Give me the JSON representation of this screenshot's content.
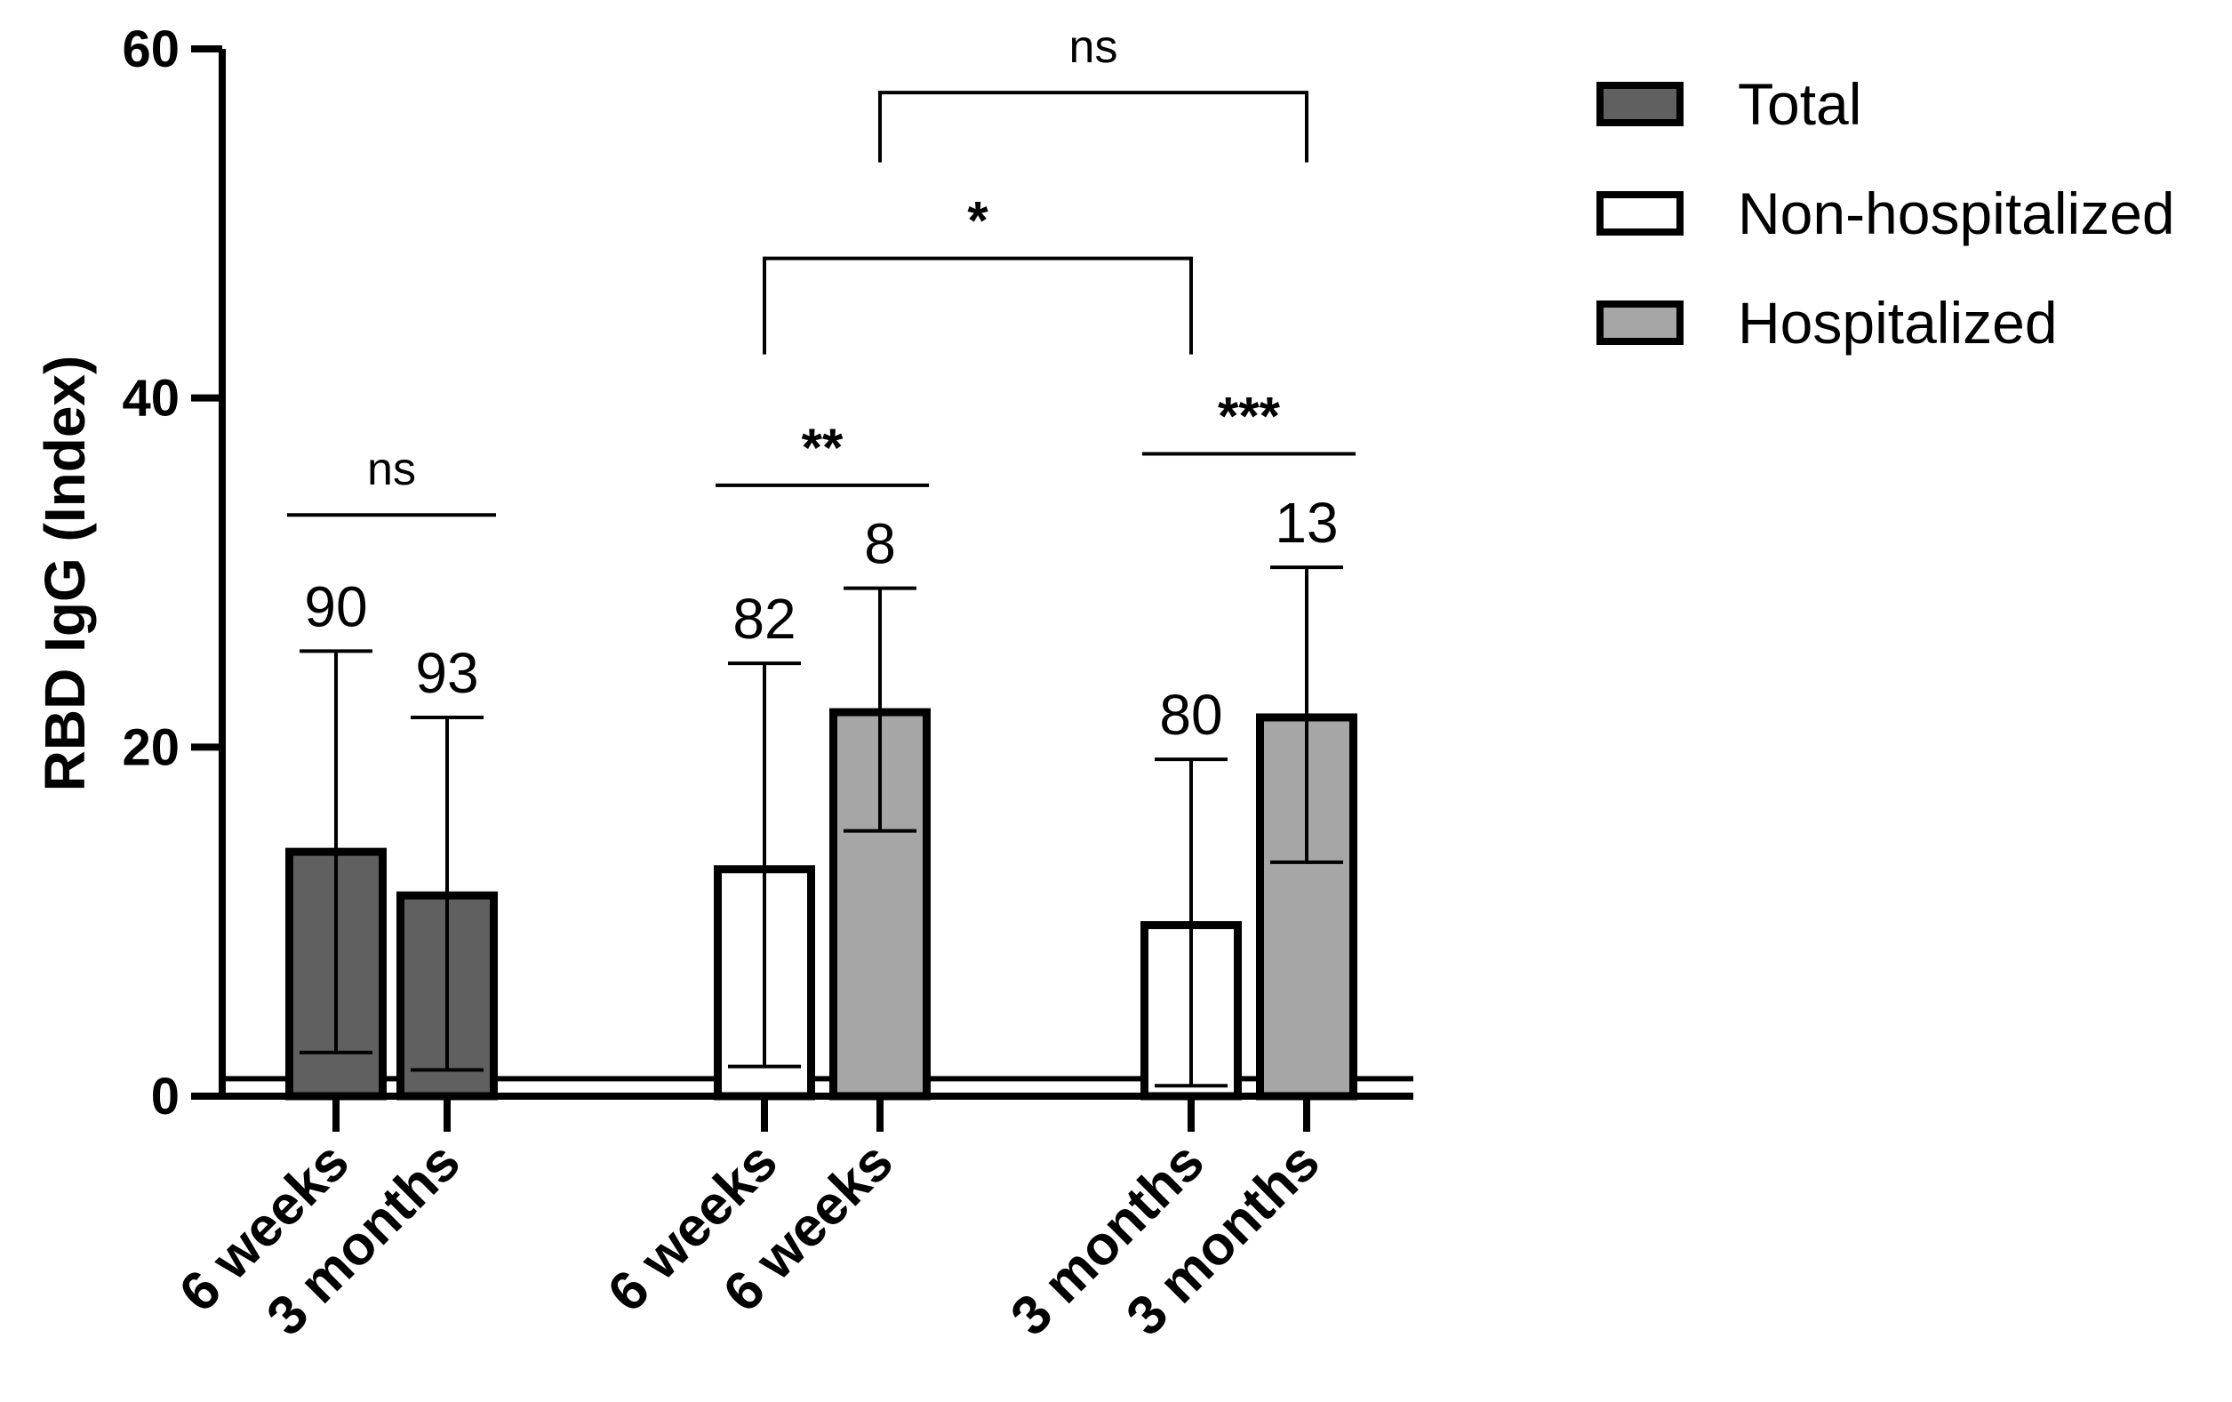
{
  "chart_data": {
    "type": "bar",
    "title": "",
    "xlabel": "",
    "ylabel": "RBD IgG  (Index)",
    "ylim": [
      0,
      60
    ],
    "yticks": [
      0,
      20,
      40,
      60
    ],
    "grid": false,
    "legend_position": "top-right",
    "cutoff_line": 1,
    "legend": [
      {
        "name": "Total",
        "color": "#606060"
      },
      {
        "name": "Non-hospitalized",
        "color": "#ffffff"
      },
      {
        "name": "Hospitalized",
        "color": "#a6a6a6"
      }
    ],
    "bars": [
      {
        "category": "6 weeks",
        "series": "Total",
        "value": 14,
        "err_low": 2.5,
        "err_high": 25.5,
        "n": "90",
        "color": "#606060"
      },
      {
        "category": "3 months",
        "series": "Total",
        "value": 11.5,
        "err_low": 1.5,
        "err_high": 21.7,
        "n": "93",
        "color": "#606060"
      },
      {
        "category": "6 weeks",
        "series": "Non-hospitalized",
        "value": 13,
        "err_low": 1.7,
        "err_high": 24.8,
        "n": "82",
        "color": "#ffffff"
      },
      {
        "category": "6 weeks",
        "series": "Hospitalized",
        "value": 22,
        "err_low": 15.2,
        "err_high": 29.1,
        "n": "8",
        "color": "#a6a6a6"
      },
      {
        "category": "3 months",
        "series": "Non-hospitalized",
        "value": 9.8,
        "err_low": 0.6,
        "err_high": 19.3,
        "n": "80",
        "color": "#ffffff"
      },
      {
        "category": "3 months",
        "series": "Hospitalized",
        "value": 21.7,
        "err_low": 13.4,
        "err_high": 30.3,
        "n": "13",
        "color": "#a6a6a6"
      }
    ],
    "comparisons": [
      {
        "from": 0,
        "to": 1,
        "label": "ns",
        "level": 33.3,
        "style": "line"
      },
      {
        "from": 2,
        "to": 3,
        "label": "**",
        "level": 35,
        "style": "line"
      },
      {
        "from": 4,
        "to": 5,
        "label": "***",
        "level": 36.8,
        "style": "line"
      },
      {
        "from": 2,
        "to": 4,
        "label": "*",
        "level": 48,
        "leg_to": 42.5,
        "style": "bracket"
      },
      {
        "from": 3,
        "to": 5,
        "label": "ns",
        "level": 57.5,
        "leg_to": 53.5,
        "style": "bracket"
      }
    ]
  }
}
